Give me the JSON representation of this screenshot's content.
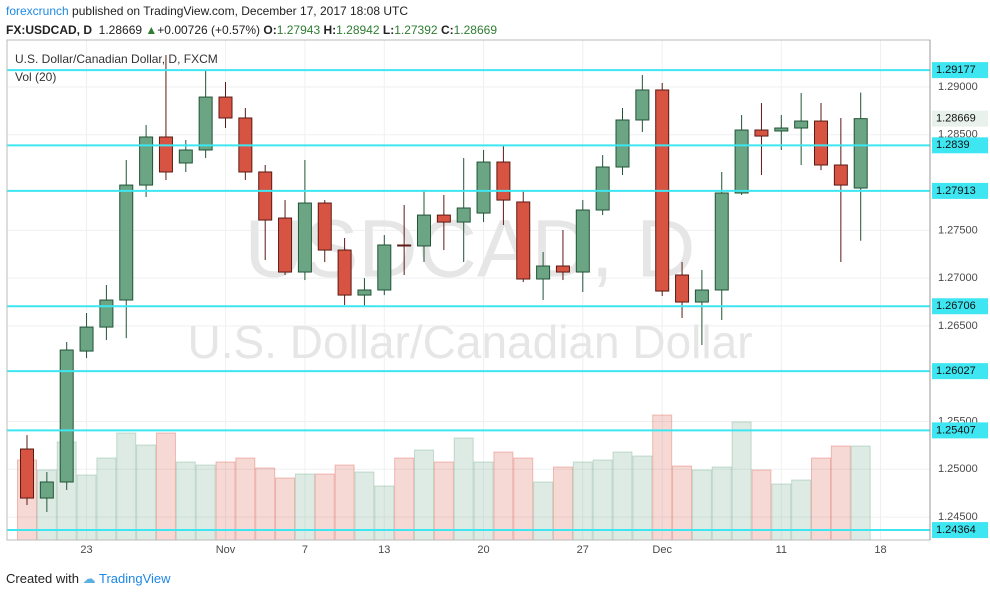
{
  "header": {
    "author": "forexcrunch",
    "published": "published on TradingView.com, December 17, 2017 18:08 UTC",
    "symbol": "FX:USDCAD, D",
    "change": "+0.00726 (+0.57%)",
    "o": "O:",
    "h": "H:",
    "l": "L:",
    "c": "C:"
  },
  "footer": {
    "created": "Created with",
    "brand": "TradingView"
  },
  "chart_data": {
    "type": "candlestick",
    "title": "U.S. Dollar/Canadian Dollar, D, FXCM",
    "volume_label": "Vol (20)",
    "watermark": [
      "USDCAD, D",
      "U.S. Dollar/Canadian Dollar"
    ],
    "categories": [
      null,
      null,
      null,
      "23",
      null,
      null,
      null,
      null,
      null,
      null,
      "Nov",
      null,
      null,
      null,
      "7",
      null,
      null,
      null,
      "13",
      null,
      null,
      null,
      null,
      "20",
      null,
      null,
      null,
      null,
      "27",
      null,
      null,
      null,
      "Dec",
      null,
      null,
      null,
      null,
      null,
      "11",
      null,
      null,
      null,
      null,
      "18"
    ],
    "open": [
      1.25212,
      1.24699,
      1.24867,
      1.26237,
      1.26488,
      1.26771,
      1.27974,
      1.28477,
      1.28205,
      1.28341,
      1.28895,
      1.28676,
      1.28111,
      1.27629,
      1.27064,
      1.27786,
      1.27294,
      1.26823,
      1.26876,
      1.27347,
      1.27337,
      1.2766,
      1.27587,
      1.27681,
      1.28215,
      1.27797,
      1.26991,
      1.27127,
      1.27064,
      1.27713,
      1.28163,
      1.28655,
      1.28969,
      1.27033,
      1.2675,
      1.26876,
      1.27891,
      1.2855,
      1.2854,
      1.28571,
      1.28644,
      1.28184,
      1.27943,
      null
    ],
    "high": [
      1.25358,
      1.24971,
      1.26332,
      1.26635,
      1.26928,
      1.28236,
      1.28602,
      1.29335,
      1.28445,
      1.29178,
      1.29052,
      1.2878,
      1.28184,
      1.27817,
      1.28236,
      1.27817,
      1.2742,
      1.27001,
      1.27451,
      1.27765,
      1.27922,
      1.2787,
      1.28257,
      1.28341,
      1.28393,
      1.27922,
      1.27273,
      1.27504,
      1.27817,
      1.28288,
      1.2878,
      1.29126,
      1.29042,
      1.27169,
      1.27085,
      1.28111,
      1.28707,
      1.28833,
      1.28707,
      1.28937,
      1.28833,
      1.28676,
      1.28942,
      null
    ],
    "low": [
      1.24626,
      1.24553,
      1.24783,
      1.26164,
      1.26352,
      1.26373,
      1.27849,
      1.28027,
      1.28111,
      1.28257,
      1.28571,
      1.28027,
      1.2719,
      1.27033,
      1.2698,
      1.27169,
      1.26719,
      1.26698,
      1.26823,
      1.27033,
      1.27169,
      1.27294,
      1.27169,
      1.27587,
      1.27556,
      1.26959,
      1.26771,
      1.2698,
      1.26855,
      1.2766,
      1.28079,
      1.28529,
      1.26813,
      1.26583,
      1.263,
      1.26562,
      1.2787,
      1.28079,
      1.28341,
      1.28184,
      1.28131,
      1.27169,
      1.27392,
      null
    ],
    "close": [
      1.24699,
      1.24867,
      1.26248,
      1.26488,
      1.26771,
      1.27974,
      1.28477,
      1.28111,
      1.28341,
      1.28895,
      1.28676,
      1.28111,
      1.27608,
      1.27064,
      1.27786,
      1.27294,
      1.26823,
      1.26876,
      1.27347,
      1.27337,
      1.2766,
      1.27587,
      1.27734,
      1.28215,
      1.27817,
      1.26991,
      1.27127,
      1.27064,
      1.27713,
      1.28163,
      1.28655,
      1.28969,
      1.26865,
      1.2675,
      1.26876,
      1.27891,
      1.2855,
      1.28487,
      1.28571,
      1.28644,
      1.28184,
      1.27974,
      1.28669,
      null
    ],
    "volume": [
      80,
      70,
      98,
      65,
      82,
      107,
      95,
      107,
      78,
      75,
      78,
      82,
      72,
      62,
      66,
      66,
      75,
      68,
      54,
      82,
      90,
      78,
      102,
      78,
      88,
      82,
      58,
      73,
      78,
      80,
      88,
      84,
      125,
      74,
      70,
      73,
      118,
      70,
      56,
      60,
      82,
      94,
      94,
      null
    ],
    "volume_lim": [
      0,
      500
    ],
    "up_color": "#6ba583",
    "down_color": "#d75442",
    "ylim": [
      1.2426,
      1.29492
    ],
    "yticks": [
      {
        "value": 1.29,
        "label": "1.29000"
      },
      {
        "value": 1.285,
        "label": "1.28500"
      },
      {
        "value": 1.275,
        "label": "1.27500"
      },
      {
        "value": 1.27,
        "label": "1.27000"
      },
      {
        "value": 1.265,
        "label": "1.26500"
      },
      {
        "value": 1.255,
        "label": "1.25500"
      },
      {
        "value": 1.25,
        "label": "1.25000"
      },
      {
        "value": 1.245,
        "label": "1.24500"
      }
    ],
    "levels": [
      1.29177,
      1.2839,
      1.27913,
      1.26706,
      1.26027,
      1.25407,
      1.24364
    ],
    "level_color": "#3ee6f2",
    "grid": true
  }
}
